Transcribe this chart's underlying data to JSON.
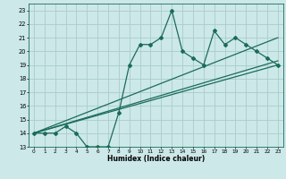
{
  "xlabel": "Humidex (Indice chaleur)",
  "bg_color": "#cce8e8",
  "grid_color": "#aacccc",
  "line_color": "#1a6b5a",
  "xlim": [
    -0.5,
    23.5
  ],
  "ylim": [
    13,
    23.5
  ],
  "xticks": [
    0,
    1,
    2,
    3,
    4,
    5,
    6,
    7,
    8,
    9,
    10,
    11,
    12,
    13,
    14,
    15,
    16,
    17,
    18,
    19,
    20,
    21,
    22,
    23
  ],
  "yticks": [
    13,
    14,
    15,
    16,
    17,
    18,
    19,
    20,
    21,
    22,
    23
  ],
  "series1_x": [
    0,
    1,
    2,
    3,
    4,
    5,
    6,
    7,
    8,
    9,
    10,
    11,
    12,
    13,
    14,
    15,
    16,
    17,
    18,
    19,
    20,
    21,
    22,
    23
  ],
  "series1_y": [
    14,
    14,
    14,
    14.5,
    14,
    13,
    13,
    13,
    15.5,
    19,
    20.5,
    20.5,
    21,
    23,
    20,
    19.5,
    19,
    21.5,
    20.5,
    21,
    20.5,
    20,
    19.5,
    19
  ],
  "series2_x": [
    0,
    23
  ],
  "series2_y": [
    14,
    19
  ],
  "series3_x": [
    0,
    23
  ],
  "series3_y": [
    14,
    21
  ],
  "series4_x": [
    0,
    23
  ],
  "series4_y": [
    14,
    19.3
  ]
}
